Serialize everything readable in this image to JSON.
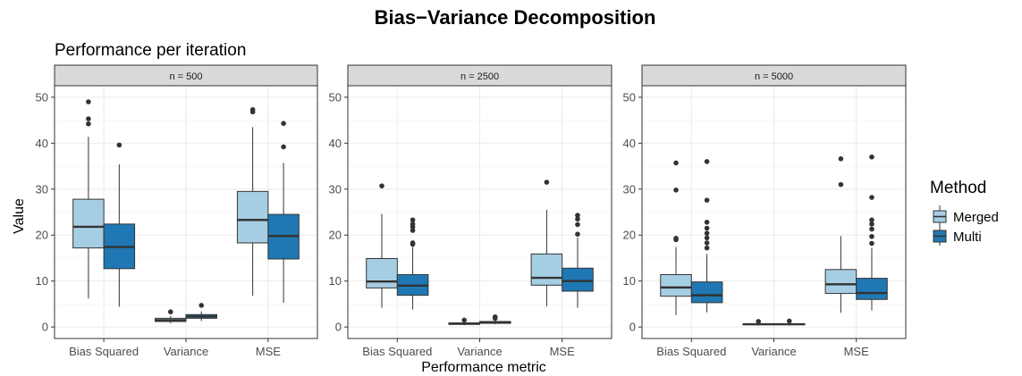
{
  "chart_data": {
    "type": "boxplot",
    "title": "Bias−Variance Decomposition",
    "subtitle": "Performance per iteration",
    "xlabel": "Performance metric",
    "ylabel": "Value",
    "ylim": [
      0,
      50
    ],
    "yticks": [
      0,
      10,
      20,
      30,
      40,
      50
    ],
    "categories": [
      "Bias Squared",
      "Variance",
      "MSE"
    ],
    "legend": {
      "title": "Method",
      "position": "right",
      "entries": [
        {
          "name": "Merged",
          "color": "#a6cee3"
        },
        {
          "name": "Multi",
          "color": "#1f78b4"
        }
      ]
    },
    "grid": true,
    "panels": [
      {
        "label": "n = 500",
        "boxes": [
          {
            "category": "Bias Squared",
            "method": "Merged",
            "whisker_low": 6.2,
            "q1": 17.2,
            "median": 21.8,
            "q3": 27.8,
            "whisker_high": 41.4,
            "outliers": [
              44.2,
              45.3,
              49.0
            ]
          },
          {
            "category": "Bias Squared",
            "method": "Multi",
            "whisker_low": 4.4,
            "q1": 12.7,
            "median": 17.4,
            "q3": 22.4,
            "whisker_high": 35.4,
            "outliers": [
              39.6
            ]
          },
          {
            "category": "Variance",
            "method": "Merged",
            "whisker_low": 0.8,
            "q1": 1.2,
            "median": 1.5,
            "q3": 1.9,
            "whisker_high": 2.4,
            "outliers": [
              3.3
            ]
          },
          {
            "category": "Variance",
            "method": "Multi",
            "whisker_low": 1.3,
            "q1": 1.9,
            "median": 2.3,
            "q3": 2.7,
            "whisker_high": 3.4,
            "outliers": [
              4.7
            ]
          },
          {
            "category": "MSE",
            "method": "Merged",
            "whisker_low": 6.8,
            "q1": 18.3,
            "median": 23.3,
            "q3": 29.5,
            "whisker_high": 43.5,
            "outliers": [
              46.8,
              47.3
            ]
          },
          {
            "category": "MSE",
            "method": "Multi",
            "whisker_low": 5.3,
            "q1": 14.8,
            "median": 19.8,
            "q3": 24.5,
            "whisker_high": 35.7,
            "outliers": [
              39.2,
              44.3
            ]
          }
        ]
      },
      {
        "label": "n = 2500",
        "boxes": [
          {
            "category": "Bias Squared",
            "method": "Merged",
            "whisker_low": 4.2,
            "q1": 8.5,
            "median": 9.9,
            "q3": 14.9,
            "whisker_high": 24.6,
            "outliers": [
              30.7
            ]
          },
          {
            "category": "Bias Squared",
            "method": "Multi",
            "whisker_low": 3.8,
            "q1": 6.9,
            "median": 9.0,
            "q3": 11.4,
            "whisker_high": 17.4,
            "outliers": [
              18.0,
              18.3,
              21.0,
              21.8,
              22.4,
              23.3
            ]
          },
          {
            "category": "Variance",
            "method": "Merged",
            "whisker_low": 0.4,
            "q1": 0.6,
            "median": 0.7,
            "q3": 0.9,
            "whisker_high": 1.1,
            "outliers": [
              1.5
            ]
          },
          {
            "category": "Variance",
            "method": "Multi",
            "whisker_low": 0.6,
            "q1": 0.8,
            "median": 1.0,
            "q3": 1.2,
            "whisker_high": 1.5,
            "outliers": [
              1.9,
              2.2
            ]
          },
          {
            "category": "MSE",
            "method": "Merged",
            "whisker_low": 4.5,
            "q1": 9.1,
            "median": 10.7,
            "q3": 15.9,
            "whisker_high": 25.5,
            "outliers": [
              31.5
            ]
          },
          {
            "category": "MSE",
            "method": "Multi",
            "whisker_low": 4.2,
            "q1": 7.8,
            "median": 10.0,
            "q3": 12.8,
            "whisker_high": 19.5,
            "outliers": [
              20.2,
              22.3,
              23.5,
              24.3
            ]
          }
        ]
      },
      {
        "label": "n = 5000",
        "boxes": [
          {
            "category": "Bias Squared",
            "method": "Merged",
            "whisker_low": 2.6,
            "q1": 6.7,
            "median": 8.6,
            "q3": 11.4,
            "whisker_high": 17.4,
            "outliers": [
              19.0,
              19.3,
              29.8,
              35.7
            ]
          },
          {
            "category": "Bias Squared",
            "method": "Multi",
            "whisker_low": 3.2,
            "q1": 5.3,
            "median": 6.9,
            "q3": 9.8,
            "whisker_high": 15.9,
            "outliers": [
              17.2,
              18.3,
              19.4,
              20.4,
              21.5,
              22.8,
              27.6,
              36.0
            ]
          },
          {
            "category": "Variance",
            "method": "Merged",
            "whisker_low": 0.3,
            "q1": 0.5,
            "median": 0.6,
            "q3": 0.7,
            "whisker_high": 0.9,
            "outliers": [
              1.2
            ]
          },
          {
            "category": "Variance",
            "method": "Multi",
            "whisker_low": 0.3,
            "q1": 0.5,
            "median": 0.6,
            "q3": 0.7,
            "whisker_high": 0.9,
            "outliers": [
              1.3
            ]
          },
          {
            "category": "MSE",
            "method": "Merged",
            "whisker_low": 3.1,
            "q1": 7.3,
            "median": 9.3,
            "q3": 12.5,
            "whisker_high": 19.8,
            "outliers": [
              31.0,
              36.6
            ]
          },
          {
            "category": "MSE",
            "method": "Multi",
            "whisker_low": 3.6,
            "q1": 6.0,
            "median": 7.4,
            "q3": 10.6,
            "whisker_high": 17.2,
            "outliers": [
              18.2,
              19.7,
              21.3,
              22.4,
              23.3,
              28.2,
              37.0
            ]
          }
        ]
      }
    ]
  }
}
